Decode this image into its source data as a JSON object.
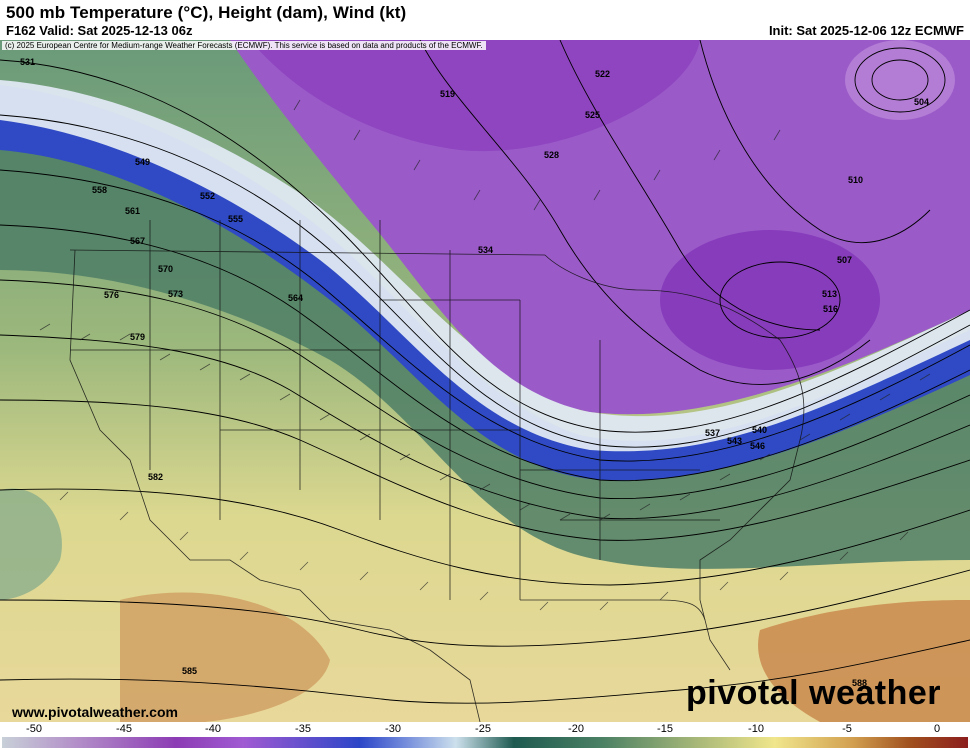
{
  "header": {
    "title": "500 mb Temperature (°C), Height (dam), Wind (kt)",
    "valid": "F162 Valid: Sat 2025-12-13 06z",
    "init": "Init: Sat 2025-12-06 12z ECMWF",
    "copyright": "(c) 2025 European Centre for Medium-range Weather Forecasts (ECMWF). This service is based on data and products of the ECMWF."
  },
  "footer": {
    "website": "www.pivotalweather.com",
    "brand": "pivotal weather"
  },
  "colorbar": {
    "ticks": [
      "-50",
      "-45",
      "-40",
      "-35",
      "-30",
      "-25",
      "-20",
      "-15",
      "-10",
      "-5",
      "0"
    ]
  },
  "height_labels": [
    "531",
    "549",
    "552",
    "555",
    "558",
    "561",
    "564",
    "567",
    "570",
    "573",
    "576",
    "579",
    "582",
    "585",
    "588",
    "519",
    "522",
    "525",
    "528",
    "534",
    "537",
    "540",
    "543",
    "546",
    "504",
    "507",
    "510",
    "513",
    "516"
  ],
  "colors": {
    "cold_core": "#8c3cb4",
    "jet_blue": "#2c46c8",
    "mid_green": "#4a8064",
    "warm_yellow": "#f0e68c",
    "warm_brown": "#c88c50"
  }
}
